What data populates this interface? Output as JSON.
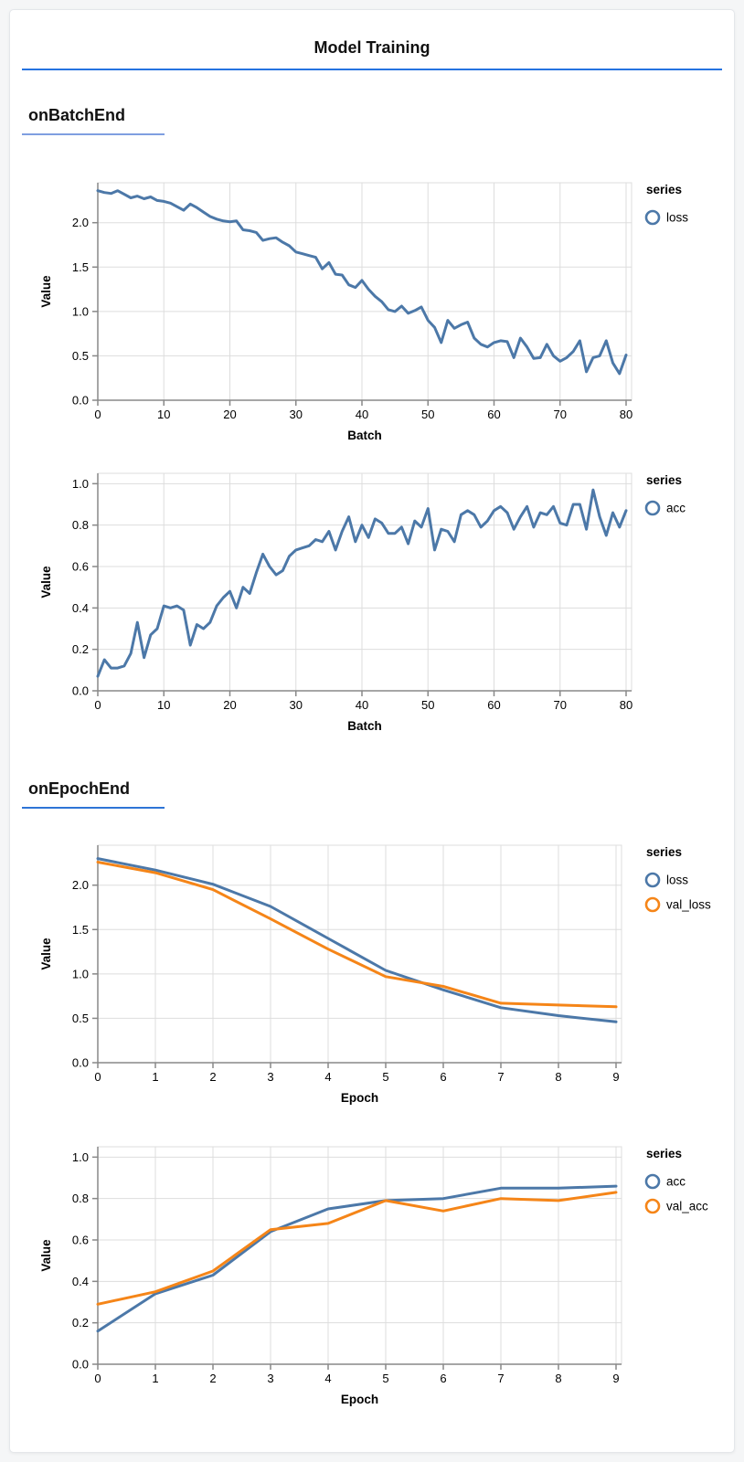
{
  "page": {
    "background": "#f5f6f7",
    "panel_background": "#ffffff",
    "panel_border": "#e4e7ea"
  },
  "header": {
    "title": "Model Training",
    "divider_color": "#2673e0"
  },
  "sections": [
    {
      "heading": "onBatchEnd",
      "underline_color": "#7f9ee0"
    },
    {
      "heading": "onEpochEnd",
      "underline_color": "#2e74d6"
    }
  ],
  "chart_style": {
    "grid_color": "#dddddd",
    "axis_color": "#888888",
    "label_color": "#000000",
    "series_blue": "#4c78a8",
    "series_orange": "#f58518"
  },
  "chart_data": [
    {
      "type": "line",
      "section": "onBatchEnd",
      "xlabel": "Batch",
      "ylabel": "Value",
      "legend_title": "series",
      "legend_position": "right",
      "grid": true,
      "x_start": 0,
      "x_step": 1,
      "xlim": [
        0,
        80
      ],
      "ylim": [
        0,
        2.45
      ],
      "xticks": [
        0,
        10,
        20,
        30,
        40,
        50,
        60,
        70,
        80
      ],
      "yticks": [
        0.0,
        0.5,
        1.0,
        1.5,
        2.0
      ],
      "series": [
        {
          "name": "loss",
          "color": "#4c78a8",
          "values": [
            2.36,
            2.34,
            2.33,
            2.36,
            2.32,
            2.28,
            2.3,
            2.27,
            2.29,
            2.25,
            2.24,
            2.22,
            2.18,
            2.14,
            2.21,
            2.17,
            2.12,
            2.07,
            2.04,
            2.02,
            2.01,
            2.02,
            1.92,
            1.91,
            1.89,
            1.8,
            1.82,
            1.83,
            1.78,
            1.74,
            1.67,
            1.65,
            1.63,
            1.61,
            1.48,
            1.55,
            1.42,
            1.41,
            1.3,
            1.27,
            1.35,
            1.25,
            1.17,
            1.11,
            1.02,
            1.0,
            1.06,
            0.98,
            1.01,
            1.05,
            0.9,
            0.82,
            0.65,
            0.9,
            0.81,
            0.85,
            0.88,
            0.7,
            0.63,
            0.6,
            0.65,
            0.67,
            0.66,
            0.48,
            0.7,
            0.6,
            0.47,
            0.48,
            0.63,
            0.5,
            0.44,
            0.48,
            0.55,
            0.67,
            0.32,
            0.48,
            0.5,
            0.67,
            0.42,
            0.3,
            0.51
          ]
        }
      ]
    },
    {
      "type": "line",
      "section": "onBatchEnd",
      "xlabel": "Batch",
      "ylabel": "Value",
      "legend_title": "series",
      "legend_position": "right",
      "grid": true,
      "x_start": 0,
      "x_step": 1,
      "xlim": [
        0,
        80
      ],
      "ylim": [
        0,
        1.05
      ],
      "xticks": [
        0,
        10,
        20,
        30,
        40,
        50,
        60,
        70,
        80
      ],
      "yticks": [
        0.0,
        0.2,
        0.4,
        0.6,
        0.8,
        1.0
      ],
      "series": [
        {
          "name": "acc",
          "color": "#4c78a8",
          "values": [
            0.07,
            0.15,
            0.11,
            0.11,
            0.12,
            0.18,
            0.33,
            0.16,
            0.27,
            0.3,
            0.41,
            0.4,
            0.41,
            0.39,
            0.22,
            0.32,
            0.3,
            0.33,
            0.41,
            0.45,
            0.48,
            0.4,
            0.5,
            0.47,
            0.57,
            0.66,
            0.6,
            0.56,
            0.58,
            0.65,
            0.68,
            0.69,
            0.7,
            0.73,
            0.72,
            0.77,
            0.68,
            0.77,
            0.84,
            0.72,
            0.8,
            0.74,
            0.83,
            0.81,
            0.76,
            0.76,
            0.79,
            0.71,
            0.82,
            0.79,
            0.88,
            0.68,
            0.78,
            0.77,
            0.72,
            0.85,
            0.87,
            0.85,
            0.79,
            0.82,
            0.87,
            0.89,
            0.86,
            0.78,
            0.84,
            0.89,
            0.79,
            0.86,
            0.85,
            0.89,
            0.81,
            0.8,
            0.9,
            0.9,
            0.78,
            0.97,
            0.84,
            0.75,
            0.86,
            0.79,
            0.87
          ]
        }
      ]
    },
    {
      "type": "line",
      "section": "onEpochEnd",
      "xlabel": "Epoch",
      "ylabel": "Value",
      "legend_title": "series",
      "legend_position": "right",
      "grid": true,
      "x_start": 0,
      "x_step": 1,
      "xlim": [
        0,
        9
      ],
      "ylim": [
        0,
        2.45
      ],
      "xticks": [
        0,
        1,
        2,
        3,
        4,
        5,
        6,
        7,
        8,
        9
      ],
      "yticks": [
        0.0,
        0.5,
        1.0,
        1.5,
        2.0
      ],
      "series": [
        {
          "name": "loss",
          "color": "#4c78a8",
          "values": [
            2.3,
            2.17,
            2.01,
            1.76,
            1.4,
            1.04,
            0.82,
            0.62,
            0.53,
            0.46
          ]
        },
        {
          "name": "val_loss",
          "color": "#f58518",
          "values": [
            2.26,
            2.14,
            1.95,
            1.62,
            1.28,
            0.97,
            0.86,
            0.67,
            0.65,
            0.63
          ]
        }
      ]
    },
    {
      "type": "line",
      "section": "onEpochEnd",
      "xlabel": "Epoch",
      "ylabel": "Value",
      "legend_title": "series",
      "legend_position": "right",
      "grid": true,
      "x_start": 0,
      "x_step": 1,
      "xlim": [
        0,
        9
      ],
      "ylim": [
        0,
        1.05
      ],
      "xticks": [
        0,
        1,
        2,
        3,
        4,
        5,
        6,
        7,
        8,
        9
      ],
      "yticks": [
        0.0,
        0.2,
        0.4,
        0.6,
        0.8,
        1.0
      ],
      "series": [
        {
          "name": "acc",
          "color": "#4c78a8",
          "values": [
            0.16,
            0.34,
            0.43,
            0.64,
            0.75,
            0.79,
            0.8,
            0.85,
            0.85,
            0.86
          ]
        },
        {
          "name": "val_acc",
          "color": "#f58518",
          "values": [
            0.29,
            0.35,
            0.45,
            0.65,
            0.68,
            0.79,
            0.74,
            0.8,
            0.79,
            0.83
          ]
        }
      ]
    }
  ]
}
